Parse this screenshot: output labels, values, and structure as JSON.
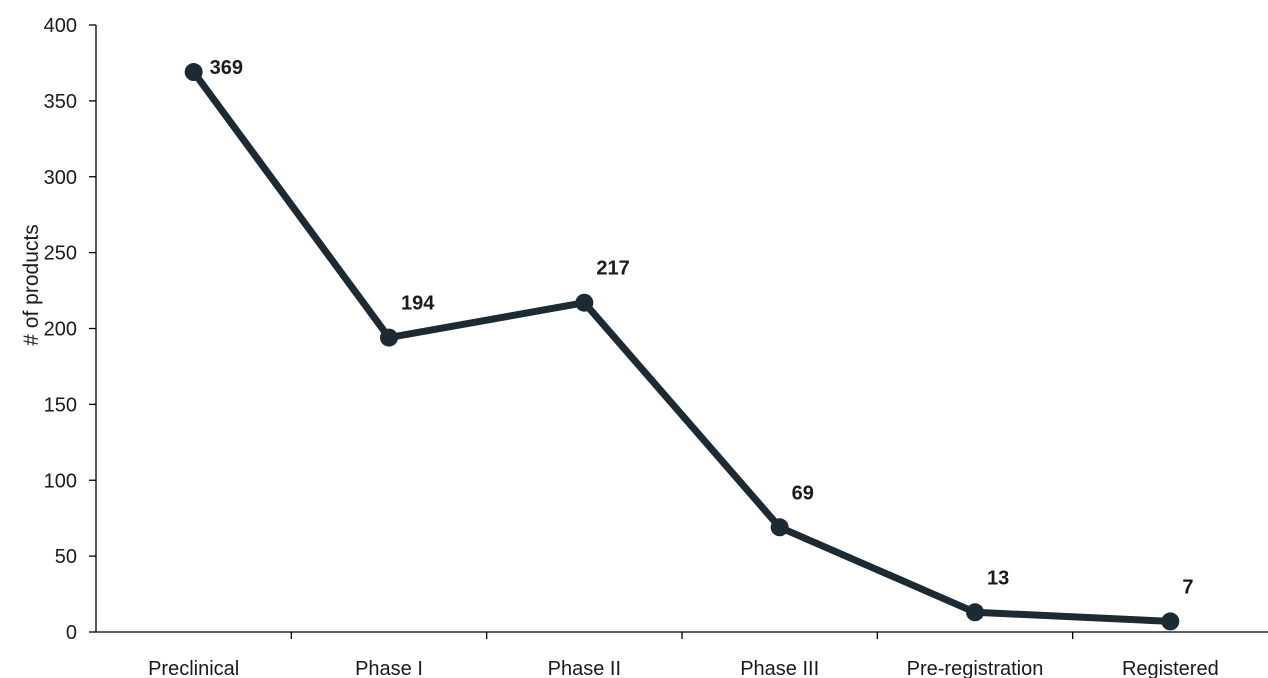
{
  "chart_data": {
    "type": "line",
    "title": "",
    "xlabel": "",
    "ylabel": "# of products",
    "categories": [
      "Preclinical",
      "Phase I",
      "Phase II",
      "Phase III",
      "Pre-registration",
      "Registered"
    ],
    "series": [
      {
        "values": [
          369,
          194,
          217,
          69,
          13,
          7
        ],
        "data_labels": [
          "369",
          "194",
          "217",
          "69",
          "13",
          "7"
        ],
        "color": "#1c2a33"
      }
    ],
    "ylim": [
      0,
      400
    ],
    "yticks": [
      "0",
      "50",
      "100",
      "150",
      "200",
      "250",
      "300",
      "350",
      "400"
    ],
    "grid": false,
    "legend": "none",
    "colors": {
      "axis": "#000000",
      "line": "#1c2a33",
      "text": "#1a1a1a"
    }
  }
}
